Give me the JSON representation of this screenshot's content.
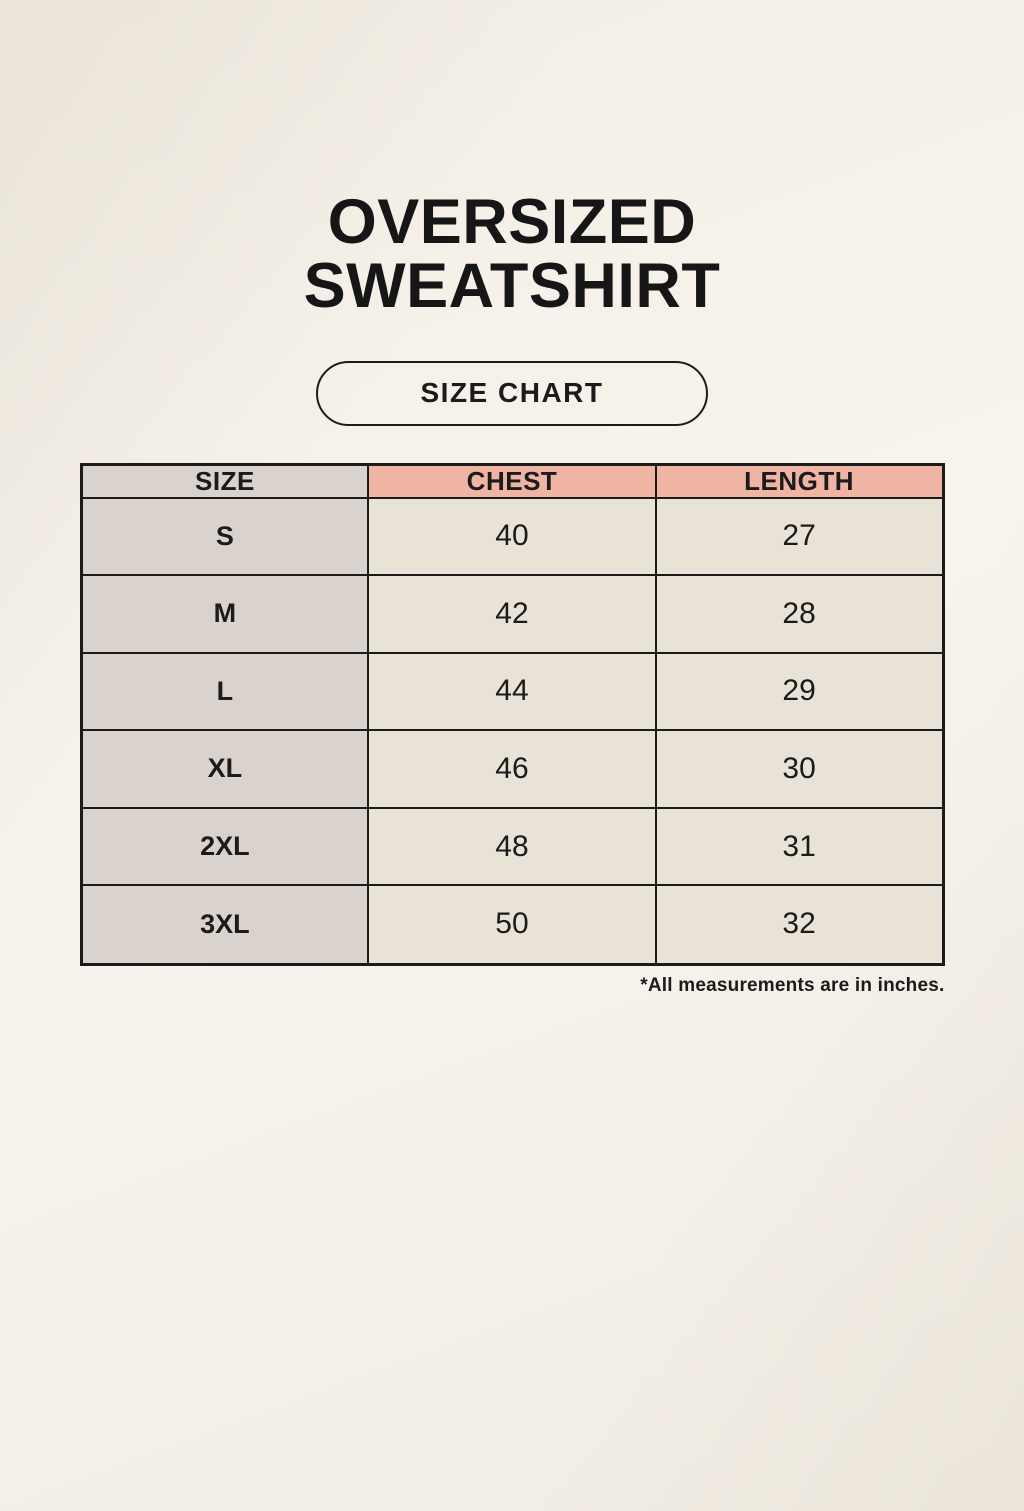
{
  "title": {
    "line1": "OVERSIZED",
    "line2": "SWEATSHIRT"
  },
  "size_chart_button": {
    "label": "SIZE CHART"
  },
  "table": {
    "headers": {
      "size": "SIZE",
      "chest": "CHEST",
      "length": "LENGTH"
    },
    "rows": [
      {
        "size": "S",
        "chest": "40",
        "length": "27"
      },
      {
        "size": "M",
        "chest": "42",
        "length": "28"
      },
      {
        "size": "L",
        "chest": "44",
        "length": "29"
      },
      {
        "size": "XL",
        "chest": "46",
        "length": "30"
      },
      {
        "size": "2XL",
        "chest": "48",
        "length": "31"
      },
      {
        "size": "3XL",
        "chest": "50",
        "length": "32"
      }
    ]
  },
  "footnote": "*All measurements are in inches.",
  "colors": {
    "page_background": "#f7f3ec",
    "size_column_bg": "#dad3cd",
    "measurement_header_bg": "#efb4a3",
    "data_cell_bg": "#e9e2d6",
    "border_and_text": "#1b1b1b"
  }
}
